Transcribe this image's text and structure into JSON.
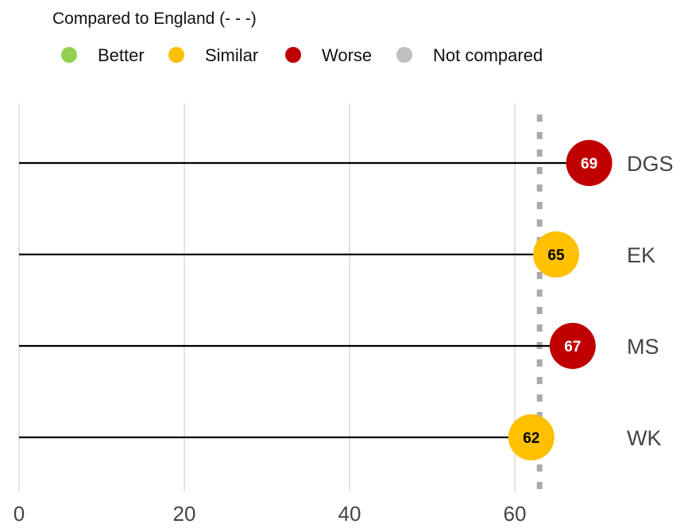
{
  "legend": {
    "title": "Compared to England (- - -)",
    "items": [
      {
        "label": "Better",
        "color": "#92d050"
      },
      {
        "label": "Similar",
        "color": "#ffc000"
      },
      {
        "label": "Worse",
        "color": "#c00000"
      },
      {
        "label": "Not compared",
        "color": "#bfbfbf"
      }
    ]
  },
  "chart_data": {
    "type": "lollipop",
    "categories": [
      "DGS",
      "EK",
      "MS",
      "WK"
    ],
    "values": [
      69,
      65,
      67,
      62
    ],
    "comparison": [
      "Worse",
      "Similar",
      "Worse",
      "Similar"
    ],
    "reference_line": {
      "label": "England",
      "value": 63,
      "style": "dotted",
      "color": "#aaaaaa"
    },
    "xlim": [
      0,
      72
    ],
    "xticks": [
      0,
      20,
      40,
      60
    ],
    "grid": "vertical"
  }
}
